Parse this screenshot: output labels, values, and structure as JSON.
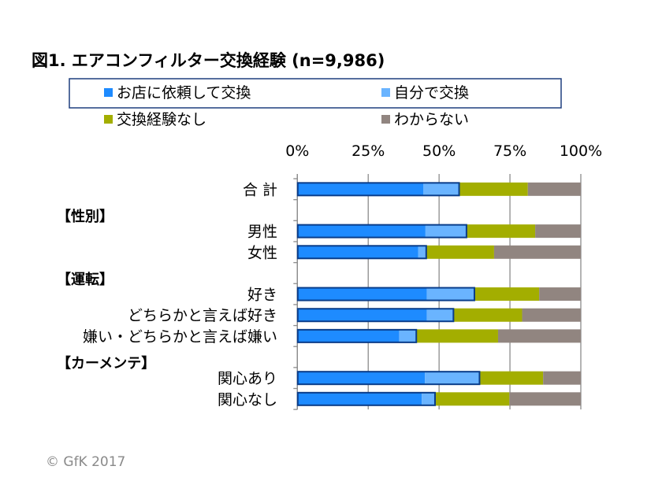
{
  "chart_data": {
    "type": "bar",
    "stacked": true,
    "orientation": "horizontal",
    "title": "図1. エアコンフィルター交換経験 (n=9,986)",
    "xlim": [
      0,
      100
    ],
    "x_ticks": [
      "0%",
      "25%",
      "50%",
      "75%",
      "100%"
    ],
    "grid": true,
    "legend_position": "top",
    "groups": [
      {
        "label": "",
        "categories": [
          "合 計"
        ]
      },
      {
        "label": "【性別】",
        "categories": [
          "男性",
          "女性"
        ]
      },
      {
        "label": "【運転】",
        "categories": [
          "好き",
          "どちらかと言えば好き",
          "嫌い・どちらかと言えば嫌い"
        ]
      },
      {
        "label": "【カーメンテ】",
        "categories": [
          "関心あり",
          "関心なし"
        ]
      }
    ],
    "categories": [
      "合 計",
      "男性",
      "女性",
      "好き",
      "どちらかと言えば好き",
      "嫌い・どちらかと言えば嫌い",
      "関心あり",
      "関心なし"
    ],
    "series": [
      {
        "name": "お店に依頼して交換",
        "color": "#1E8BFF",
        "values": [
          44.4,
          45.2,
          42.6,
          45.7,
          45.7,
          35.9,
          45.0,
          43.9
        ]
      },
      {
        "name": "自分で交換",
        "color": "#6AB4FF",
        "values": [
          12.8,
          14.6,
          3.0,
          16.9,
          9.5,
          6.2,
          19.4,
          4.8
        ]
      },
      {
        "name": "交換経験なし",
        "color": "#A3AE00",
        "values": [
          24.1,
          24.1,
          23.8,
          22.7,
          24.1,
          28.7,
          22.3,
          26.1
        ]
      },
      {
        "name": "わからない",
        "color": "#918580",
        "values": [
          18.7,
          16.1,
          30.6,
          14.7,
          20.7,
          29.2,
          13.3,
          25.2
        ]
      }
    ],
    "highlight_outline_color": "#0A3D8A"
  },
  "footer": {
    "copyright": "© GfK 2017"
  }
}
